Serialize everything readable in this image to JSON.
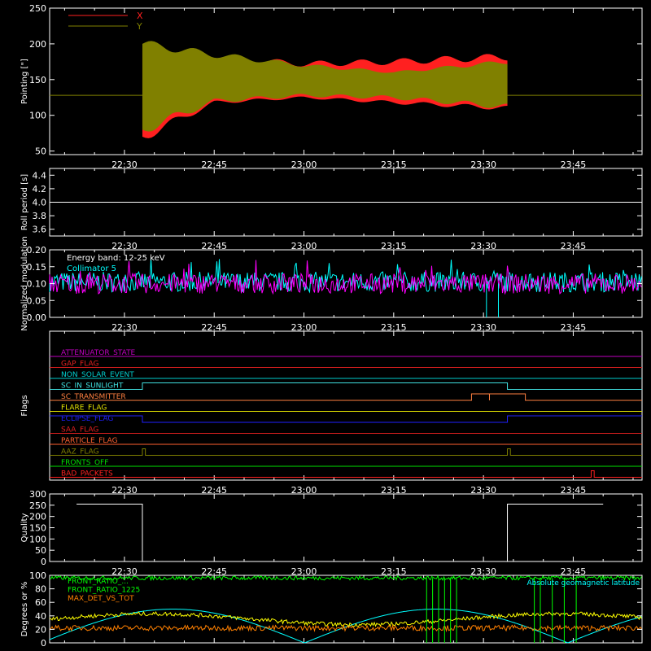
{
  "time_axis": {
    "ticks": [
      "22:30",
      "22:45",
      "23:00",
      "23:15",
      "23:30",
      "23:45"
    ],
    "tick_minutes": [
      1350,
      1365,
      1380,
      1395,
      1410,
      1425
    ],
    "range_minutes": [
      1337.5,
      1436.5
    ]
  },
  "colors": {
    "background": "#000000",
    "axes": "#ffffff",
    "pointing_x": "#ff2020",
    "pointing_y": "#808000",
    "modulation_a": "#ff00ff",
    "modulation_b": "#00ffff",
    "quality": "#ffffff"
  },
  "chart_data": [
    {
      "type": "area",
      "ylabel": "Pointing [\"]",
      "ylim": [
        45,
        250
      ],
      "yticks": [
        "50",
        "100",
        "150",
        "200",
        "250"
      ],
      "legend": [
        {
          "name": "X",
          "color": "#ff2020"
        },
        {
          "name": "Y",
          "color": "#808000"
        }
      ],
      "legend_position": "top-left",
      "baseline": 128,
      "active_range": [
        "22:33",
        "23:34"
      ],
      "series": [
        {
          "name": "X",
          "x": [
            "22:33",
            "22:45",
            "23:00",
            "23:15",
            "23:34"
          ],
          "upper": [
            190,
            180,
            172,
            175,
            182
          ],
          "lower": [
            70,
            118,
            125,
            118,
            110
          ]
        },
        {
          "name": "Y",
          "x": [
            "22:33",
            "22:45",
            "23:00",
            "23:15",
            "23:34"
          ],
          "upper": [
            200,
            185,
            170,
            160,
            175
          ],
          "lower": [
            80,
            120,
            128,
            125,
            112
          ]
        }
      ]
    },
    {
      "type": "line",
      "ylabel": "Roll period [s]",
      "ylim": [
        3.5,
        4.5
      ],
      "yticks": [
        "3.6",
        "3.8",
        "4.0",
        "4.2",
        "4.4"
      ],
      "series": [
        {
          "name": "",
          "x": [
            "22:22",
            "23:50"
          ],
          "values": [
            4.0,
            4.0
          ]
        }
      ]
    },
    {
      "type": "line",
      "ylabel": "Normalized modulation",
      "ylim": [
        0,
        0.2
      ],
      "yticks": [
        "0.00",
        "0.05",
        "0.10",
        "0.15",
        "0.20"
      ],
      "annotations": [
        "Energy band: 12-25 keV",
        "Collimator 5"
      ],
      "series": [
        {
          "name": "",
          "mean": 0.1,
          "noise": 0.03
        },
        {
          "name": "Collimator 5",
          "mean": 0.105,
          "noise": 0.03,
          "dropouts": [
            "23:29",
            "23:31"
          ]
        }
      ]
    },
    {
      "type": "line",
      "ylabel": "Flags",
      "flags": [
        {
          "label": "ATTENUATOR_STATE",
          "color": "#c000c0",
          "changes": []
        },
        {
          "label": "GAP_FLAG",
          "color": "#e02020",
          "changes": []
        },
        {
          "label": "NON_SOLAR_EVENT",
          "color": "#00cccc",
          "changes": []
        },
        {
          "label": "SC_IN_SUNLIGHT",
          "color": "#40e0e0",
          "changes": [
            [
              "22:33",
              "23:34"
            ]
          ]
        },
        {
          "label": "SC_TRANSMITTER",
          "color": "#ff8040",
          "changes": [
            [
              "23:28",
              "23:31"
            ],
            [
              "23:31",
              "23:37"
            ]
          ]
        },
        {
          "label": "FLARE_FLAG",
          "color": "#e0e000",
          "changes": []
        },
        {
          "label": "ECLIPSE_FLAG",
          "color": "#2020ff",
          "changes": [
            [
              "22:33",
              "23:34"
            ]
          ],
          "inverted": true
        },
        {
          "label": "SAA_FLAG",
          "color": "#e02020",
          "changes": []
        },
        {
          "label": "PARTICLE_FLAG",
          "color": "#ff6030",
          "changes": []
        },
        {
          "label": "AAZ_FLAG",
          "color": "#808000",
          "changes": [
            [
              "22:33",
              "22:33"
            ],
            [
              "23:34",
              "23:34"
            ]
          ]
        },
        {
          "label": "FRONTS_OFF",
          "color": "#00e000",
          "changes": []
        },
        {
          "label": "BAD_PACKETS",
          "color": "#ff2020",
          "changes": [
            [
              "23:48",
              "23:48"
            ]
          ]
        }
      ]
    },
    {
      "type": "line",
      "ylabel": "Quality",
      "ylim": [
        0,
        300
      ],
      "yticks": [
        "0",
        "50",
        "100",
        "150",
        "200",
        "250",
        "300"
      ],
      "series": [
        {
          "name": "",
          "x": [
            "22:22",
            "22:33",
            "22:33",
            "23:34",
            "23:34",
            "23:50"
          ],
          "values": [
            255,
            255,
            0,
            0,
            255,
            255
          ]
        }
      ]
    },
    {
      "type": "line",
      "ylabel": "Degrees or %",
      "ylim": [
        0,
        100
      ],
      "yticks": [
        "0",
        "20",
        "40",
        "60",
        "80",
        "100"
      ],
      "legend": [
        {
          "name": "FRONT_RATIO_...",
          "color": "#00ff00"
        },
        {
          "name": "FRONT_RATIO_1225",
          "color": "#00ff00"
        },
        {
          "name": "MAX_DET_VS_TOT",
          "color": "#ff8000"
        }
      ],
      "annotations": [
        "Absolute geomagnetic latitude"
      ],
      "series": [
        {
          "name": "FRONT_RATIO_...",
          "level": 96
        },
        {
          "name": "FRONT_RATIO_1225",
          "level": 35
        },
        {
          "name": "MAX_DET_VS_TOT",
          "level": 22
        },
        {
          "name": "Absolute geomagnetic latitude",
          "peak": 50
        }
      ]
    }
  ]
}
